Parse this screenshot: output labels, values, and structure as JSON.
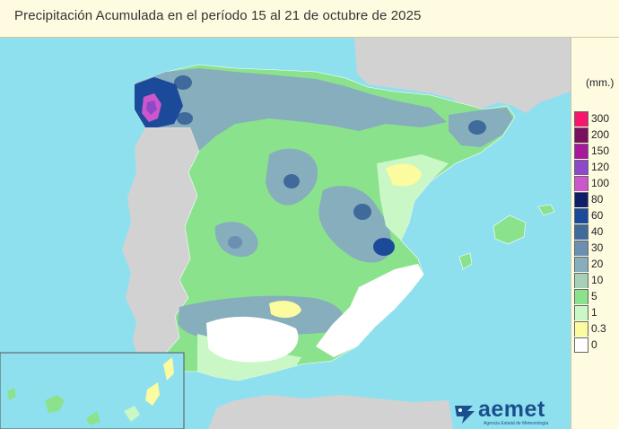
{
  "title": "Precipitación Acumulada en el período 15 al 21 de octubre de 2025",
  "legend": {
    "unit": "(mm.)",
    "items": [
      {
        "label": "300",
        "color": "#f7166e"
      },
      {
        "label": "200",
        "color": "#7a1060"
      },
      {
        "label": "150",
        "color": "#a8189c"
      },
      {
        "label": "120",
        "color": "#8e49c8"
      },
      {
        "label": "100",
        "color": "#cc56cc"
      },
      {
        "label": "80",
        "color": "#0f1e6b"
      },
      {
        "label": "60",
        "color": "#1c4a9a"
      },
      {
        "label": "40",
        "color": "#3f6a9b"
      },
      {
        "label": "30",
        "color": "#6a8fb0"
      },
      {
        "label": "20",
        "color": "#86aebd"
      },
      {
        "label": "10",
        "color": "#a6d0b8"
      },
      {
        "label": "5",
        "color": "#8be28d"
      },
      {
        "label": "1",
        "color": "#c9f7c6"
      },
      {
        "label": "0.3",
        "color": "#fcfba0"
      },
      {
        "label": "0",
        "color": "#ffffff"
      }
    ]
  },
  "logo": {
    "name": "aemet",
    "subtitle": "Agencia Estatal de Meteorología"
  },
  "colors": {
    "sea": "#8fe0ef",
    "foreign_land": "#d2d2d2",
    "panel_bg": "#fffbe0"
  }
}
